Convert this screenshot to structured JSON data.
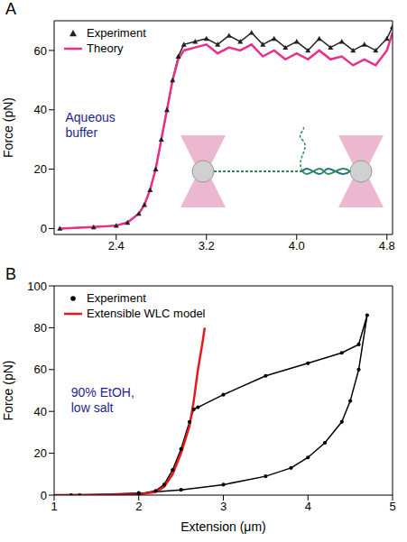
{
  "chart_data": [
    {
      "panel": "A",
      "type": "line",
      "ylabel": "Force (pN)",
      "xlim": [
        1.85,
        4.85
      ],
      "xticks": [
        2.4,
        3.2,
        {
          "value": 4,
          "label": "4.0"
        },
        4.8
      ],
      "ylim": [
        -2,
        70
      ],
      "yticks": [
        0,
        20,
        40,
        60
      ],
      "legend": "upper left",
      "annotations": [
        {
          "text": "Aqueous buffer",
          "x": 1.95,
          "y": 36
        }
      ],
      "series": [
        {
          "name": "Experiment",
          "color": "#222222",
          "marker": "triangle",
          "line_style": "solid",
          "x": [
            1.9,
            2.2,
            2.4,
            2.5,
            2.6,
            2.65,
            2.7,
            2.75,
            2.8,
            2.85,
            2.9,
            2.95,
            3.0,
            3.1,
            3.2,
            3.3,
            3.4,
            3.5,
            3.6,
            3.7,
            3.8,
            3.9,
            4.0,
            4.1,
            4.2,
            4.3,
            4.4,
            4.5,
            4.6,
            4.7,
            4.8,
            4.85
          ],
          "values": [
            0,
            0.5,
            1,
            2,
            5,
            8,
            13,
            20,
            30,
            40,
            50,
            58,
            62,
            63,
            64,
            62,
            65,
            63,
            66,
            62,
            64,
            61,
            63,
            60,
            64,
            61,
            63,
            60,
            62,
            60,
            64,
            68
          ]
        },
        {
          "name": "Theory",
          "color": "#e8308a",
          "marker": "none",
          "line_style": "solid",
          "x": [
            1.9,
            2.2,
            2.4,
            2.5,
            2.6,
            2.65,
            2.7,
            2.75,
            2.8,
            2.85,
            2.9,
            2.95,
            3.0,
            3.1,
            3.2,
            3.3,
            3.4,
            3.5,
            3.6,
            3.7,
            3.8,
            3.9,
            4.0,
            4.1,
            4.2,
            4.3,
            4.4,
            4.5,
            4.6,
            4.7,
            4.8,
            4.85
          ],
          "values": [
            0,
            0.5,
            1,
            2,
            5,
            8,
            13,
            20,
            30,
            40,
            50,
            57,
            60,
            61,
            62,
            59,
            61,
            60,
            62,
            58,
            60,
            57,
            59,
            57,
            60,
            57,
            58,
            55,
            57,
            55,
            60,
            66
          ]
        }
      ]
    },
    {
      "panel": "B",
      "type": "line",
      "xlabel": "Extension (μm)",
      "ylabel": "Force (pN)",
      "xlim": [
        1,
        5
      ],
      "xticks": [
        1,
        2,
        3,
        4,
        5
      ],
      "ylim": [
        0,
        100
      ],
      "yticks": [
        0,
        20,
        40,
        60,
        80,
        100
      ],
      "legend": "upper left",
      "annotations": [
        {
          "text": "90% EtOH, low salt",
          "x": 1.2,
          "y": 47
        }
      ],
      "series": [
        {
          "name": "Experiment",
          "color": "#000000",
          "marker": "circle",
          "line_style": "solid",
          "x": [
            1.2,
            2.0,
            2.2,
            2.3,
            2.4,
            2.5,
            2.6,
            2.65,
            2.7,
            3.0,
            3.5,
            4.0,
            4.4,
            4.6,
            4.7,
            4.6,
            4.5,
            4.4,
            4.2,
            4.0,
            3.8,
            3.5,
            3.0,
            2.5,
            2.0,
            1.3
          ],
          "values": [
            0,
            0.5,
            2,
            5,
            12,
            22,
            35,
            41,
            42,
            48,
            57,
            63,
            68,
            72,
            86,
            60,
            45,
            35,
            25,
            18,
            13,
            9,
            5,
            2.5,
            1,
            0
          ]
        },
        {
          "name": "Extensible WLC model",
          "color": "#e41a1c",
          "marker": "none",
          "line_style": "solid",
          "x": [
            1.0,
            2.0,
            2.2,
            2.3,
            2.4,
            2.5,
            2.6,
            2.65,
            2.7,
            2.75,
            2.78
          ],
          "values": [
            0,
            0.3,
            1.5,
            4,
            10,
            20,
            33,
            45,
            60,
            72,
            80
          ]
        }
      ]
    }
  ]
}
